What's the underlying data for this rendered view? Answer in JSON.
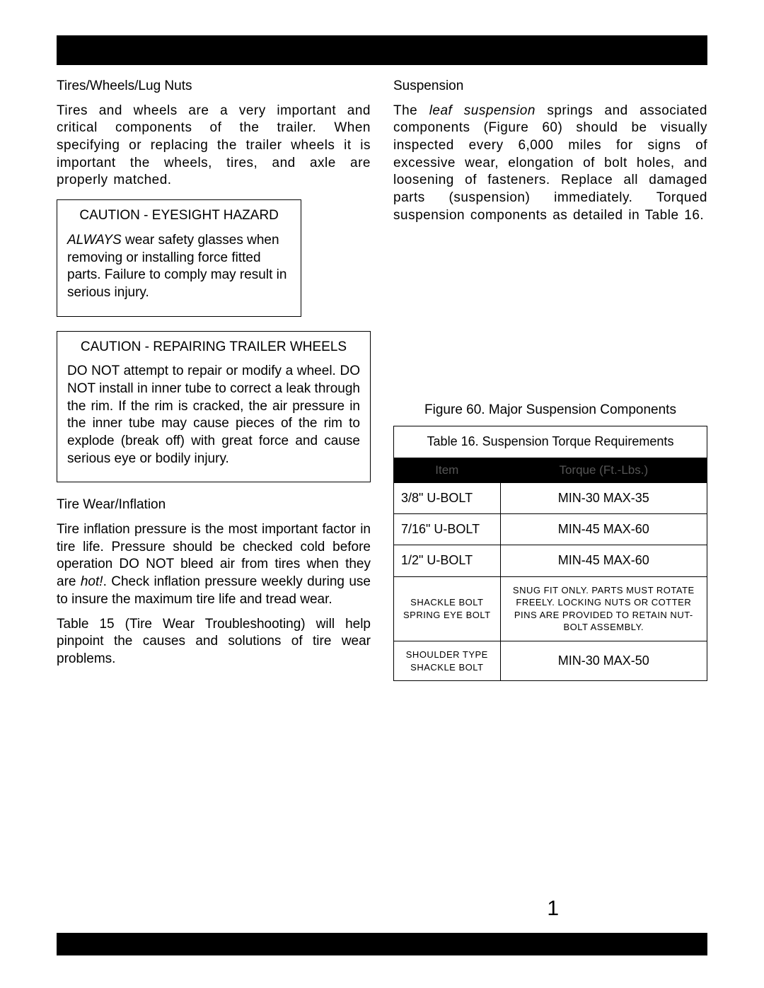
{
  "left": {
    "h1": "Tires/Wheels/Lug Nuts",
    "p1": "Tires and wheels are a very important and critical components of the trailer. When specifying or replacing the trailer wheels it is important the wheels, tires, and axle are properly matched.",
    "caution1": {
      "title": "CAUTION - EYESIGHT HAZARD",
      "lead": "ALWAYS",
      "body": " wear safety glasses when removing or installing force fitted parts. Failure to comply may result in serious injury."
    },
    "caution2": {
      "title": "CAUTION - REPAIRING TRAILER WHEELS",
      "body": "DO NOT attempt to repair or modify a wheel. DO NOT install in inner tube to correct a leak through the rim. If the rim is cracked, the air pressure in the inner tube may cause pieces of the rim to explode (break off) with great force and cause serious eye or bodily injury."
    },
    "h2": "Tire Wear/Inflation",
    "p2a": "Tire inflation pressure is the most important factor in tire life. Pressure should be checked cold before operation DO NOT bleed air from tires when they are ",
    "p2hot": "hot!",
    "p2b": ". Check inflation pressure weekly during use to insure the maximum tire life and tread wear.",
    "p3": "Table 15 (Tire Wear Troubleshooting) will help pinpoint the causes and solutions of tire wear problems."
  },
  "right": {
    "h1": "Suspension",
    "p1a": "The ",
    "p1leaf": "leaf suspension",
    "p1b": " springs and associated components (Figure 60) should be visually inspected every 6,000 miles for signs of excessive wear, elongation of bolt holes, and loosening of fasteners. Replace all damaged parts (suspension) immediately. Torqued suspension components as detailed in Table 16.",
    "figcap": "Figure 60. Major Suspension Components",
    "table": {
      "title": "Table 16.  Suspension Torque Requirements",
      "head_item": "Item",
      "head_torque": "Torque (Ft.-Lbs.)",
      "rows": [
        {
          "item": "3/8\" U-BOLT",
          "torque": "MIN-30 MAX-35",
          "small": false
        },
        {
          "item": "7/16\" U-BOLT",
          "torque": "MIN-45 MAX-60",
          "small": false
        },
        {
          "item": "1/2\" U-BOLT",
          "torque": "MIN-45 MAX-60",
          "small": false
        },
        {
          "item": "shackle bolt spring eye bolt",
          "torque": "snug fit only.  parts must rotate freely. locking nuts or cotter pins are provided to retain nut-bolt assembly.",
          "small": true
        },
        {
          "item": "shoulder type shackle bolt",
          "torque": "MIN-30 MAX-50",
          "small": false,
          "item_small": true
        }
      ]
    }
  },
  "pagenum": "1"
}
